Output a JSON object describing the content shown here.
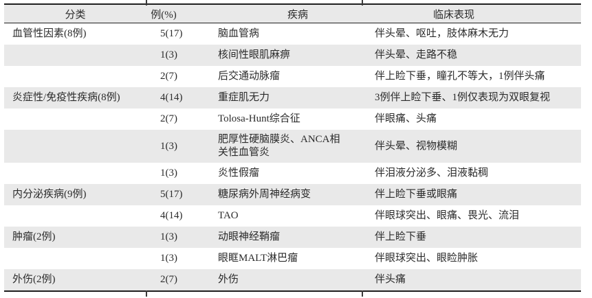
{
  "chart_data": {
    "type": "table",
    "columns": [
      "分类",
      "例(%)",
      "疾病",
      "临床表现"
    ],
    "rows": [
      [
        "血管性因素(8例)",
        "5(17)",
        "脑血管病",
        "伴头晕、呕吐，肢体麻木无力"
      ],
      [
        "",
        "1(3)",
        "核间性眼肌麻痹",
        "伴头晕、走路不稳"
      ],
      [
        "",
        "2(7)",
        "后交通动脉瘤",
        "伴上睑下垂，瞳孔不等大，1例伴头痛"
      ],
      [
        "炎症性/免疫性疾病(8例)",
        "4(14)",
        "重症肌无力",
        "3例伴上睑下垂、1例仅表现为双眼复视"
      ],
      [
        "",
        "2(7)",
        "Tolosa-Hunt综合征",
        "伴眼痛、头痛"
      ],
      [
        "",
        "1(3)",
        "肥厚性硬脑膜炎、ANCA相关性血管炎",
        "伴头晕、视物模糊"
      ],
      [
        "",
        "1(3)",
        "炎性假瘤",
        "伴泪液分泌多、泪液黏稠"
      ],
      [
        "内分泌疾病(9例)",
        "5(17)",
        "糖尿病外周神经病变",
        "伴上睑下垂或眼痛"
      ],
      [
        "",
        "4(14)",
        "TAO",
        "伴眼球突出、眼痛、畏光、流泪"
      ],
      [
        "肿瘤(2例)",
        "1(3)",
        "动眼神经鞘瘤",
        "伴上睑下垂"
      ],
      [
        "",
        "1(3)",
        "眼眶MALT淋巴瘤",
        "伴眼球突出、眼睑肿胀"
      ],
      [
        "外伤(2例)",
        "2(7)",
        "外伤",
        "伴头痛"
      ]
    ]
  },
  "colors": {
    "stripe": "#e9e9e9",
    "rule": "#1f1f1f",
    "text": "#2b2b2b"
  }
}
